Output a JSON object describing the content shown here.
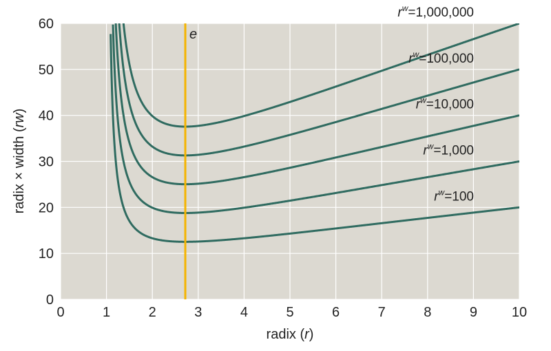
{
  "chart_data": {
    "type": "line",
    "xlabel_prefix": "radix (",
    "xlabel_var": "r",
    "xlabel_suffix": ")",
    "ylabel_prefix": "radix × width (",
    "ylabel_var": "rw",
    "ylabel_suffix": ")",
    "xlim": [
      0,
      10
    ],
    "ylim": [
      0,
      60
    ],
    "xticks": [
      "0",
      "1",
      "2",
      "3",
      "4",
      "5",
      "6",
      "7",
      "8",
      "9",
      "10"
    ],
    "yticks": [
      "0",
      "10",
      "20",
      "30",
      "40",
      "50",
      "60"
    ],
    "grid": true,
    "series": [
      {
        "label_base": "r",
        "label_sup": "w",
        "label_value": "=100",
        "N": 100
      },
      {
        "label_base": "r",
        "label_sup": "w",
        "label_value": "=1,000",
        "N": 1000
      },
      {
        "label_base": "r",
        "label_sup": "w",
        "label_value": "=10,000",
        "N": 10000
      },
      {
        "label_base": "r",
        "label_sup": "w",
        "label_value": "=100,000",
        "N": 100000
      },
      {
        "label_base": "r",
        "label_sup": "w",
        "label_value": "=1,000,000",
        "N": 1000000
      }
    ],
    "marker_line": {
      "label": "e",
      "x": 2.718
    },
    "colors": {
      "plot_bg": "#dcd9d1",
      "grid": "#ffffff",
      "curve": "#2f6b60",
      "marker": "#f5b400"
    }
  }
}
